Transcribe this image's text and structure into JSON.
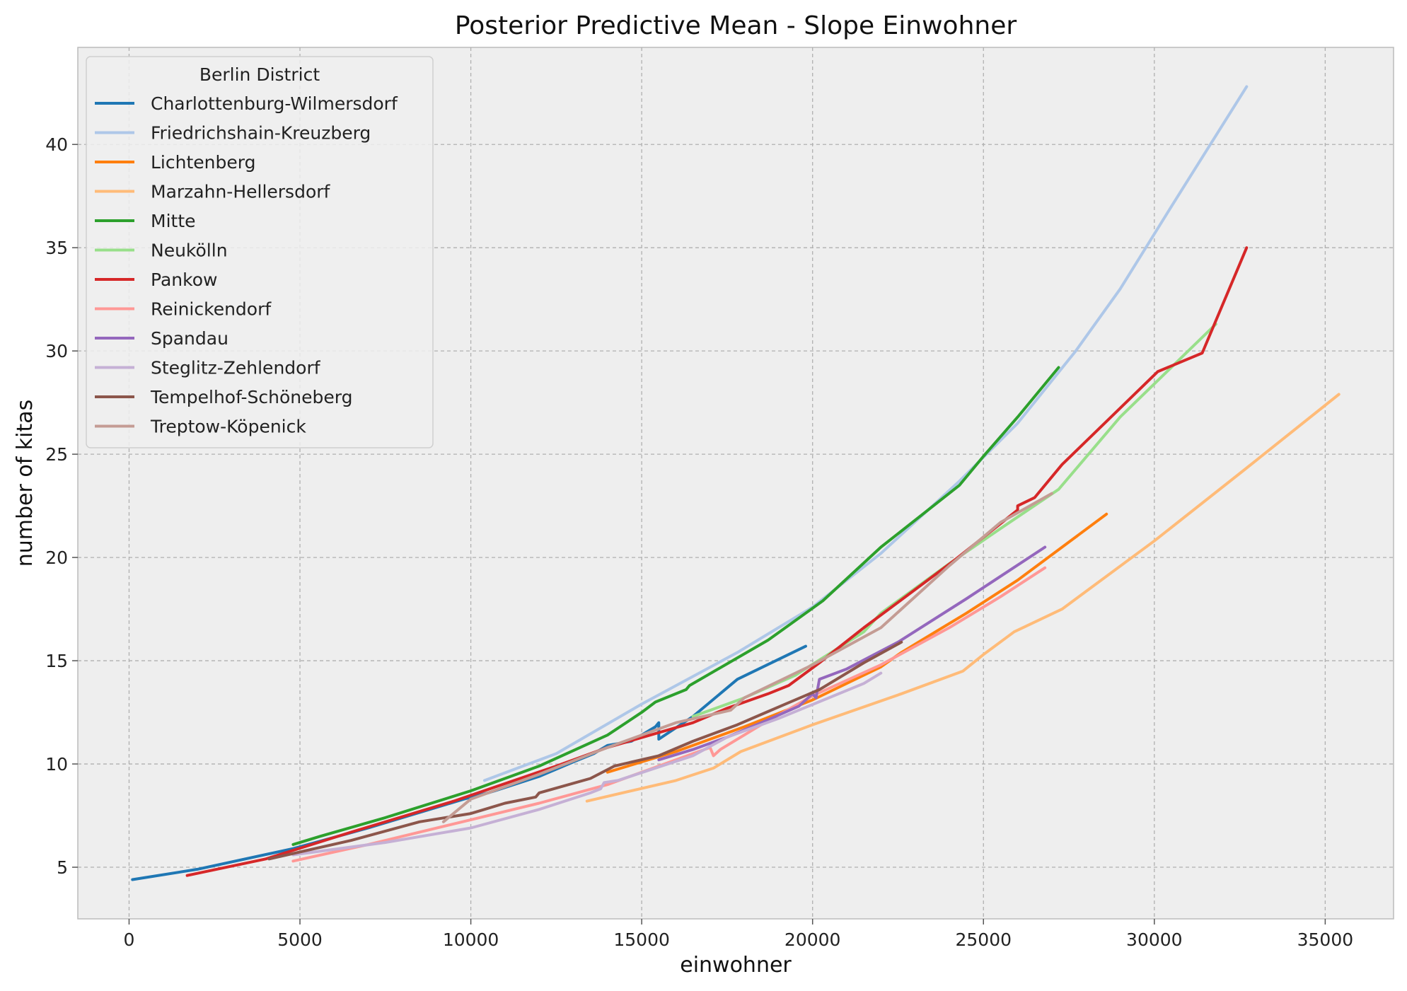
{
  "chart_data": {
    "type": "line",
    "title": "Posterior Predictive Mean - Slope Einwohner",
    "xlabel": "einwohner",
    "ylabel": "number of kitas",
    "xlim": [
      -1500,
      37000
    ],
    "ylim": [
      2.5,
      44.7
    ],
    "x_ticks": [
      0,
      5000,
      10000,
      15000,
      20000,
      25000,
      30000,
      35000
    ],
    "y_ticks": [
      5,
      10,
      15,
      20,
      25,
      30,
      35,
      40
    ],
    "grid": true,
    "legend": {
      "title": "Berlin District",
      "placement": "top-left"
    },
    "series": [
      {
        "name": "Charlottenburg-Wilmersdorf",
        "color": "#1f77b4",
        "x": [
          100,
          2000,
          4800,
          7000,
          9800,
          10500,
          10700,
          12000,
          13000,
          13600,
          14000,
          14700,
          15400,
          15500,
          15500,
          16500,
          17800,
          19800
        ],
        "y": [
          4.4,
          4.9,
          5.9,
          6.9,
          8.3,
          8.6,
          8.7,
          9.4,
          10.1,
          10.5,
          10.9,
          11.1,
          11.8,
          12.0,
          11.2,
          12.3,
          14.1,
          15.7
        ]
      },
      {
        "name": "Friedrichshain-Kreuzberg",
        "color": "#aec7e8",
        "x": [
          10400,
          12500,
          15000,
          17800,
          20000,
          22000,
          24300,
          26000,
          27700,
          29000,
          30500,
          32700
        ],
        "y": [
          9.2,
          10.5,
          12.9,
          15.4,
          17.6,
          20.2,
          23.7,
          26.5,
          30.0,
          33.0,
          37.0,
          42.8
        ]
      },
      {
        "name": "Lichtenberg",
        "color": "#ff7f0e",
        "x": [
          14000,
          16000,
          18000,
          20000,
          22000,
          22600,
          23000,
          24500,
          26000,
          28600
        ],
        "y": [
          9.6,
          10.6,
          11.8,
          13.1,
          14.7,
          15.4,
          15.8,
          17.3,
          18.9,
          22.1
        ]
      },
      {
        "name": "Marzahn-Hellersdorf",
        "color": "#ffbb78",
        "x": [
          13400,
          16000,
          17100,
          17900,
          20000,
          22600,
          24400,
          25000,
          25900,
          27300,
          30000,
          32600,
          35400
        ],
        "y": [
          8.2,
          9.2,
          9.8,
          10.6,
          11.9,
          13.4,
          14.5,
          15.3,
          16.4,
          17.5,
          20.8,
          24.2,
          27.9
        ]
      },
      {
        "name": "Mitte",
        "color": "#2ca02c",
        "x": [
          4800,
          5600,
          7500,
          10000,
          12000,
          14000,
          15000,
          15400,
          16300,
          16400,
          18700,
          20300,
          22000,
          24300,
          25000,
          26000,
          27200
        ],
        "y": [
          6.1,
          6.5,
          7.4,
          8.7,
          9.9,
          11.4,
          12.5,
          13.0,
          13.6,
          13.8,
          16.0,
          17.9,
          20.5,
          23.5,
          24.9,
          26.8,
          29.2
        ]
      },
      {
        "name": "Neukölln",
        "color": "#98df8a",
        "x": [
          16500,
          18000,
          19500,
          21500,
          22000,
          24000,
          25500,
          27200,
          29000,
          31800
        ],
        "y": [
          12.3,
          13.2,
          14.3,
          16.4,
          17.3,
          19.7,
          21.4,
          23.3,
          26.8,
          31.3
        ]
      },
      {
        "name": "Pankow",
        "color": "#d62728",
        "x": [
          1700,
          4000,
          6500,
          9500,
          12500,
          14000,
          16500,
          17500,
          18700,
          19300,
          20200,
          21500,
          24100,
          26000,
          26000,
          26500,
          27300,
          30100,
          31400,
          32700
        ],
        "y": [
          4.6,
          5.4,
          6.7,
          8.2,
          9.9,
          10.8,
          12.0,
          12.7,
          13.4,
          13.8,
          14.9,
          16.6,
          19.8,
          22.3,
          22.5,
          22.9,
          24.5,
          29.0,
          29.9,
          35.0
        ]
      },
      {
        "name": "Reinickendorf",
        "color": "#ff9896",
        "x": [
          4800,
          7000,
          10000,
          12000,
          14000,
          15500,
          16500,
          17000,
          17100,
          17300,
          18500,
          20000,
          22000,
          24000,
          25500,
          26800
        ],
        "y": [
          5.3,
          6.1,
          7.3,
          8.1,
          9.0,
          9.9,
          10.5,
          10.8,
          10.4,
          10.7,
          11.9,
          13.3,
          14.8,
          16.6,
          18.1,
          19.5
        ]
      },
      {
        "name": "Spandau",
        "color": "#9467bd",
        "x": [
          15500,
          16500,
          17500,
          18500,
          19600,
          20000,
          20100,
          20200,
          21000,
          22500,
          24500,
          26800
        ],
        "y": [
          10.2,
          10.7,
          11.3,
          12.0,
          12.8,
          13.4,
          13.2,
          14.1,
          14.6,
          15.9,
          18.0,
          20.5
        ]
      },
      {
        "name": "Steglitz-Zehlendorf",
        "color": "#c5b0d5",
        "x": [
          4800,
          7500,
          10000,
          12000,
          13500,
          13800,
          13900,
          14300,
          16500,
          17500,
          19000,
          21500,
          22000
        ],
        "y": [
          5.6,
          6.2,
          6.9,
          7.8,
          8.6,
          8.8,
          9.1,
          9.2,
          10.4,
          11.3,
          12.2,
          13.9,
          14.4
        ]
      },
      {
        "name": "Tempelhof-Schöneberg",
        "color": "#8c564b",
        "x": [
          4100,
          6500,
          8500,
          10000,
          11000,
          11900,
          12000,
          13500,
          14200,
          15500,
          16500,
          17800,
          18500,
          19200,
          20200,
          21500,
          22600
        ],
        "y": [
          5.4,
          6.3,
          7.2,
          7.6,
          8.1,
          8.4,
          8.6,
          9.3,
          9.9,
          10.4,
          11.1,
          11.9,
          12.4,
          12.9,
          13.6,
          14.9,
          15.9
        ]
      },
      {
        "name": "Treptow-Köpenick",
        "color": "#c49c94",
        "x": [
          9200,
          10000,
          12000,
          14000,
          16000,
          17600,
          18000,
          20000,
          22000,
          24000,
          25500,
          27000
        ],
        "y": [
          7.2,
          8.3,
          9.5,
          10.8,
          12.0,
          12.6,
          13.2,
          14.8,
          16.6,
          19.6,
          21.7,
          23.1
        ]
      }
    ]
  }
}
